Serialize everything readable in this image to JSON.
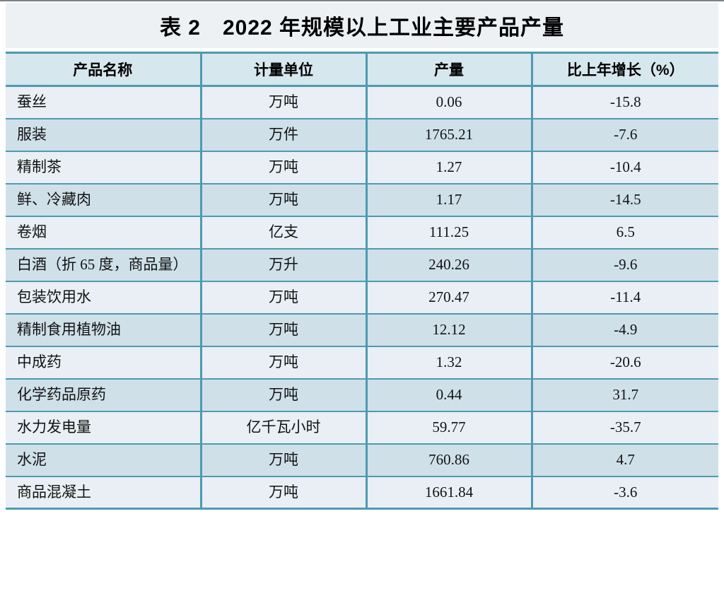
{
  "colors": {
    "top_rule": "#79848a",
    "title_band_bg": "#edf1f4",
    "header_bg": "#d7e7ee",
    "row_light": "#e9eff4",
    "row_dark": "#cfe0e9",
    "border_teal": "#4e9ab2"
  },
  "chart_data": {
    "type": "table",
    "title": "表 2　2022 年规模以上工业主要产品产量",
    "columns": [
      "产品名称",
      "计量单位",
      "产量",
      "比上年增长（%）"
    ],
    "rows": [
      [
        "蚕丝",
        "万吨",
        "0.06",
        "-15.8"
      ],
      [
        "服装",
        "万件",
        "1765.21",
        "-7.6"
      ],
      [
        "精制茶",
        "万吨",
        "1.27",
        "-10.4"
      ],
      [
        "鲜、冷藏肉",
        "万吨",
        "1.17",
        "-14.5"
      ],
      [
        "卷烟",
        "亿支",
        "111.25",
        "6.5"
      ],
      [
        "白酒（折 65 度，商品量）",
        "万升",
        "240.26",
        "-9.6"
      ],
      [
        "包装饮用水",
        "万吨",
        "270.47",
        "-11.4"
      ],
      [
        "精制食用植物油",
        "万吨",
        "12.12",
        "-4.9"
      ],
      [
        "中成药",
        "万吨",
        "1.32",
        "-20.6"
      ],
      [
        "化学药品原药",
        "万吨",
        "0.44",
        "31.7"
      ],
      [
        "水力发电量",
        "亿千瓦小时",
        "59.77",
        "-35.7"
      ],
      [
        "水泥",
        "万吨",
        "760.86",
        "4.7"
      ],
      [
        "商品混凝土",
        "万吨",
        "1661.84",
        "-3.6"
      ]
    ]
  }
}
